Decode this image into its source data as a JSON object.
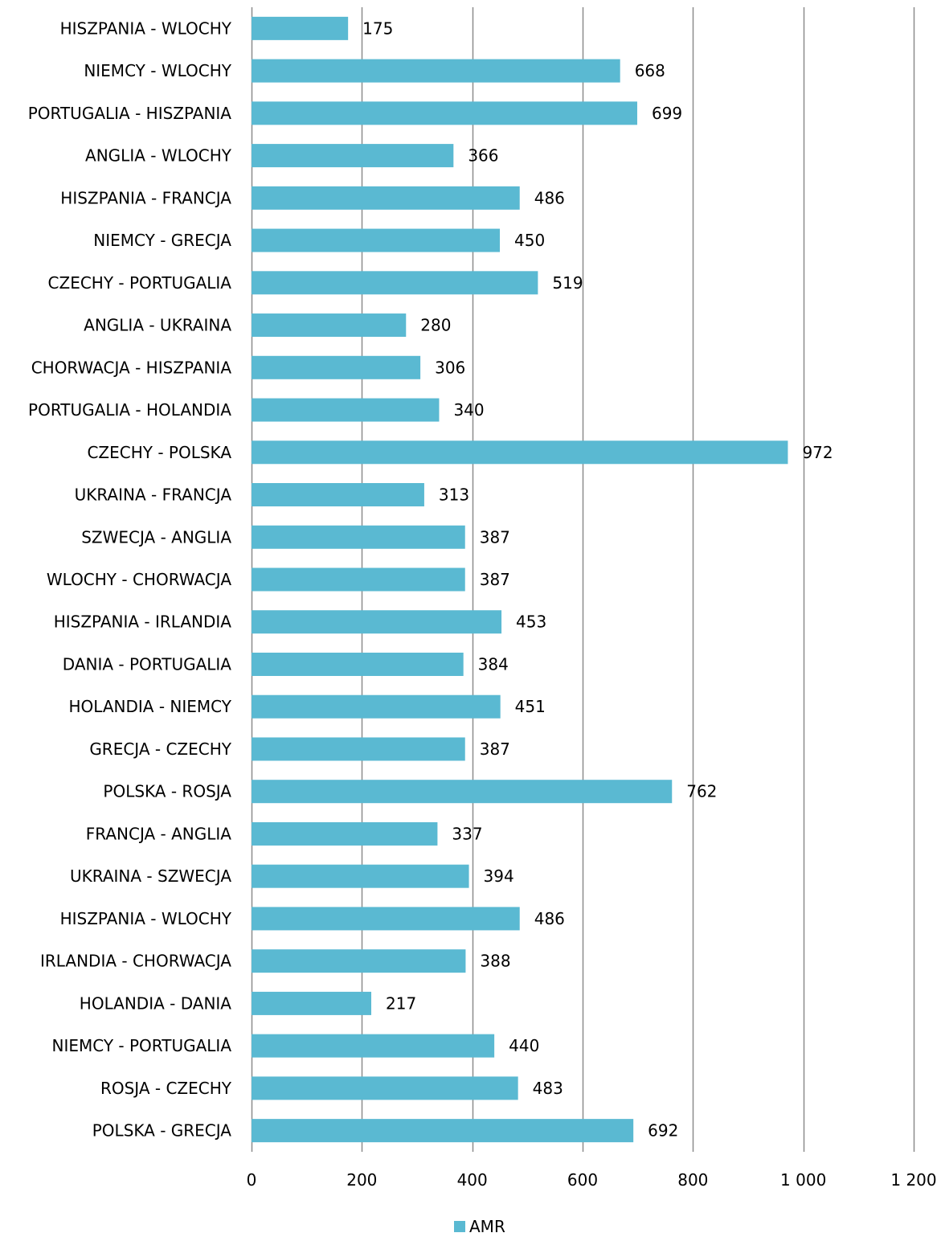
{
  "chart_data": {
    "type": "bar",
    "orientation": "horizontal",
    "categories": [
      "HISZPANIA - WLOCHY",
      "NIEMCY - WLOCHY",
      "PORTUGALIA - HISZPANIA",
      "ANGLIA - WLOCHY",
      "HISZPANIA - FRANCJA",
      "NIEMCY - GRECJA",
      "CZECHY - PORTUGALIA",
      "ANGLIA - UKRAINA",
      "CHORWACJA - HISZPANIA",
      "PORTUGALIA - HOLANDIA",
      "CZECHY - POLSKA",
      "UKRAINA - FRANCJA",
      "SZWECJA - ANGLIA",
      "WLOCHY - CHORWACJA",
      "HISZPANIA - IRLANDIA",
      "DANIA - PORTUGALIA",
      "HOLANDIA - NIEMCY",
      "GRECJA - CZECHY",
      "POLSKA - ROSJA",
      "FRANCJA - ANGLIA",
      "UKRAINA - SZWECJA",
      "HISZPANIA - WLOCHY",
      "IRLANDIA - CHORWACJA",
      "HOLANDIA - DANIA",
      "NIEMCY - PORTUGALIA",
      "ROSJA - CZECHY",
      "POLSKA - GRECJA"
    ],
    "series": [
      {
        "name": "AMR",
        "color": "#5ab9d2",
        "values": [
          175,
          668,
          699,
          366,
          486,
          450,
          519,
          280,
          306,
          340,
          972,
          313,
          387,
          387,
          453,
          384,
          451,
          387,
          762,
          337,
          394,
          486,
          388,
          217,
          440,
          483,
          692
        ]
      }
    ],
    "xlim": [
      0,
      1200
    ],
    "xticks": [
      0,
      200,
      400,
      600,
      800,
      1000,
      1200
    ],
    "xtick_labels": [
      "0",
      "200",
      "400",
      "600",
      "800",
      "1 000",
      "1 200"
    ],
    "grid": "vertical",
    "legend": "bottom-center",
    "title": "",
    "xlabel": "",
    "ylabel": ""
  }
}
